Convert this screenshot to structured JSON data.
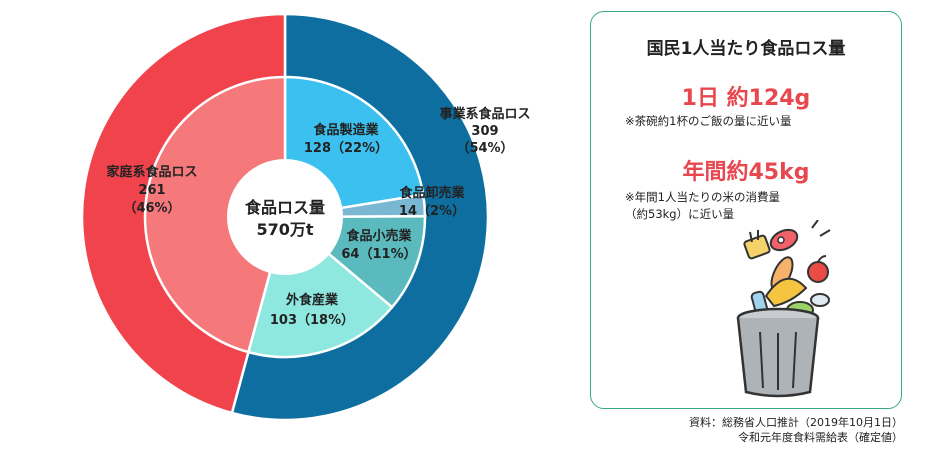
{
  "chart_data": {
    "type": "pie",
    "center_label": {
      "line1": "食品ロス量",
      "line2": "570万t"
    },
    "outer_ring": [
      {
        "name": "事業系食品ロス",
        "value": 309,
        "percent": "54%",
        "color": "#0e6ea0"
      },
      {
        "name": "家庭系食品ロス",
        "value": 261,
        "percent": "46%",
        "color": "#f0434c"
      }
    ],
    "inner_ring": [
      {
        "name": "食品製造業",
        "value": 128,
        "percent": "22%",
        "color": "#3cc0f0"
      },
      {
        "name": "食品卸売業",
        "value": 14,
        "percent": "2%",
        "color": "#7ab7d2"
      },
      {
        "name": "食品小売業",
        "value": 64,
        "percent": "11%",
        "color": "#5ababd"
      },
      {
        "name": "外食産業",
        "value": 103,
        "percent": "18%",
        "color": "#8ee8e0"
      },
      {
        "name": "家庭系食品ロス",
        "value": 261,
        "percent": "46%",
        "color": "#f5797a"
      }
    ],
    "labels": [
      {
        "name": "事業系食品ロス",
        "value": "309",
        "pct": "（54%）"
      },
      {
        "name": "家庭系食品ロス",
        "value": "261",
        "pct": "（46%）"
      },
      {
        "name": "食品製造業",
        "text": "128（22%）"
      },
      {
        "name": "食品卸売業",
        "text": "14（2%）"
      },
      {
        "name": "食品小売業",
        "text": "64（11%）"
      },
      {
        "name": "外食産業",
        "text": "103（18%）"
      }
    ]
  },
  "info_box": {
    "title": "国民1人当たり食品ロス量",
    "daily": "1日 約124g",
    "daily_note": "※茶碗約1杯のご飯の量に近い量",
    "yearly": "年間約45kg",
    "yearly_note_1": "※年間1人当たりの米の消費量",
    "yearly_note_2": "（約53kg）に近い量",
    "illustration_icon": "trash-can-with-food-icon"
  },
  "source": {
    "line1": "資料：総務省人口推計（2019年10月1日）",
    "line2": "令和元年度食料需給表（確定値）"
  }
}
